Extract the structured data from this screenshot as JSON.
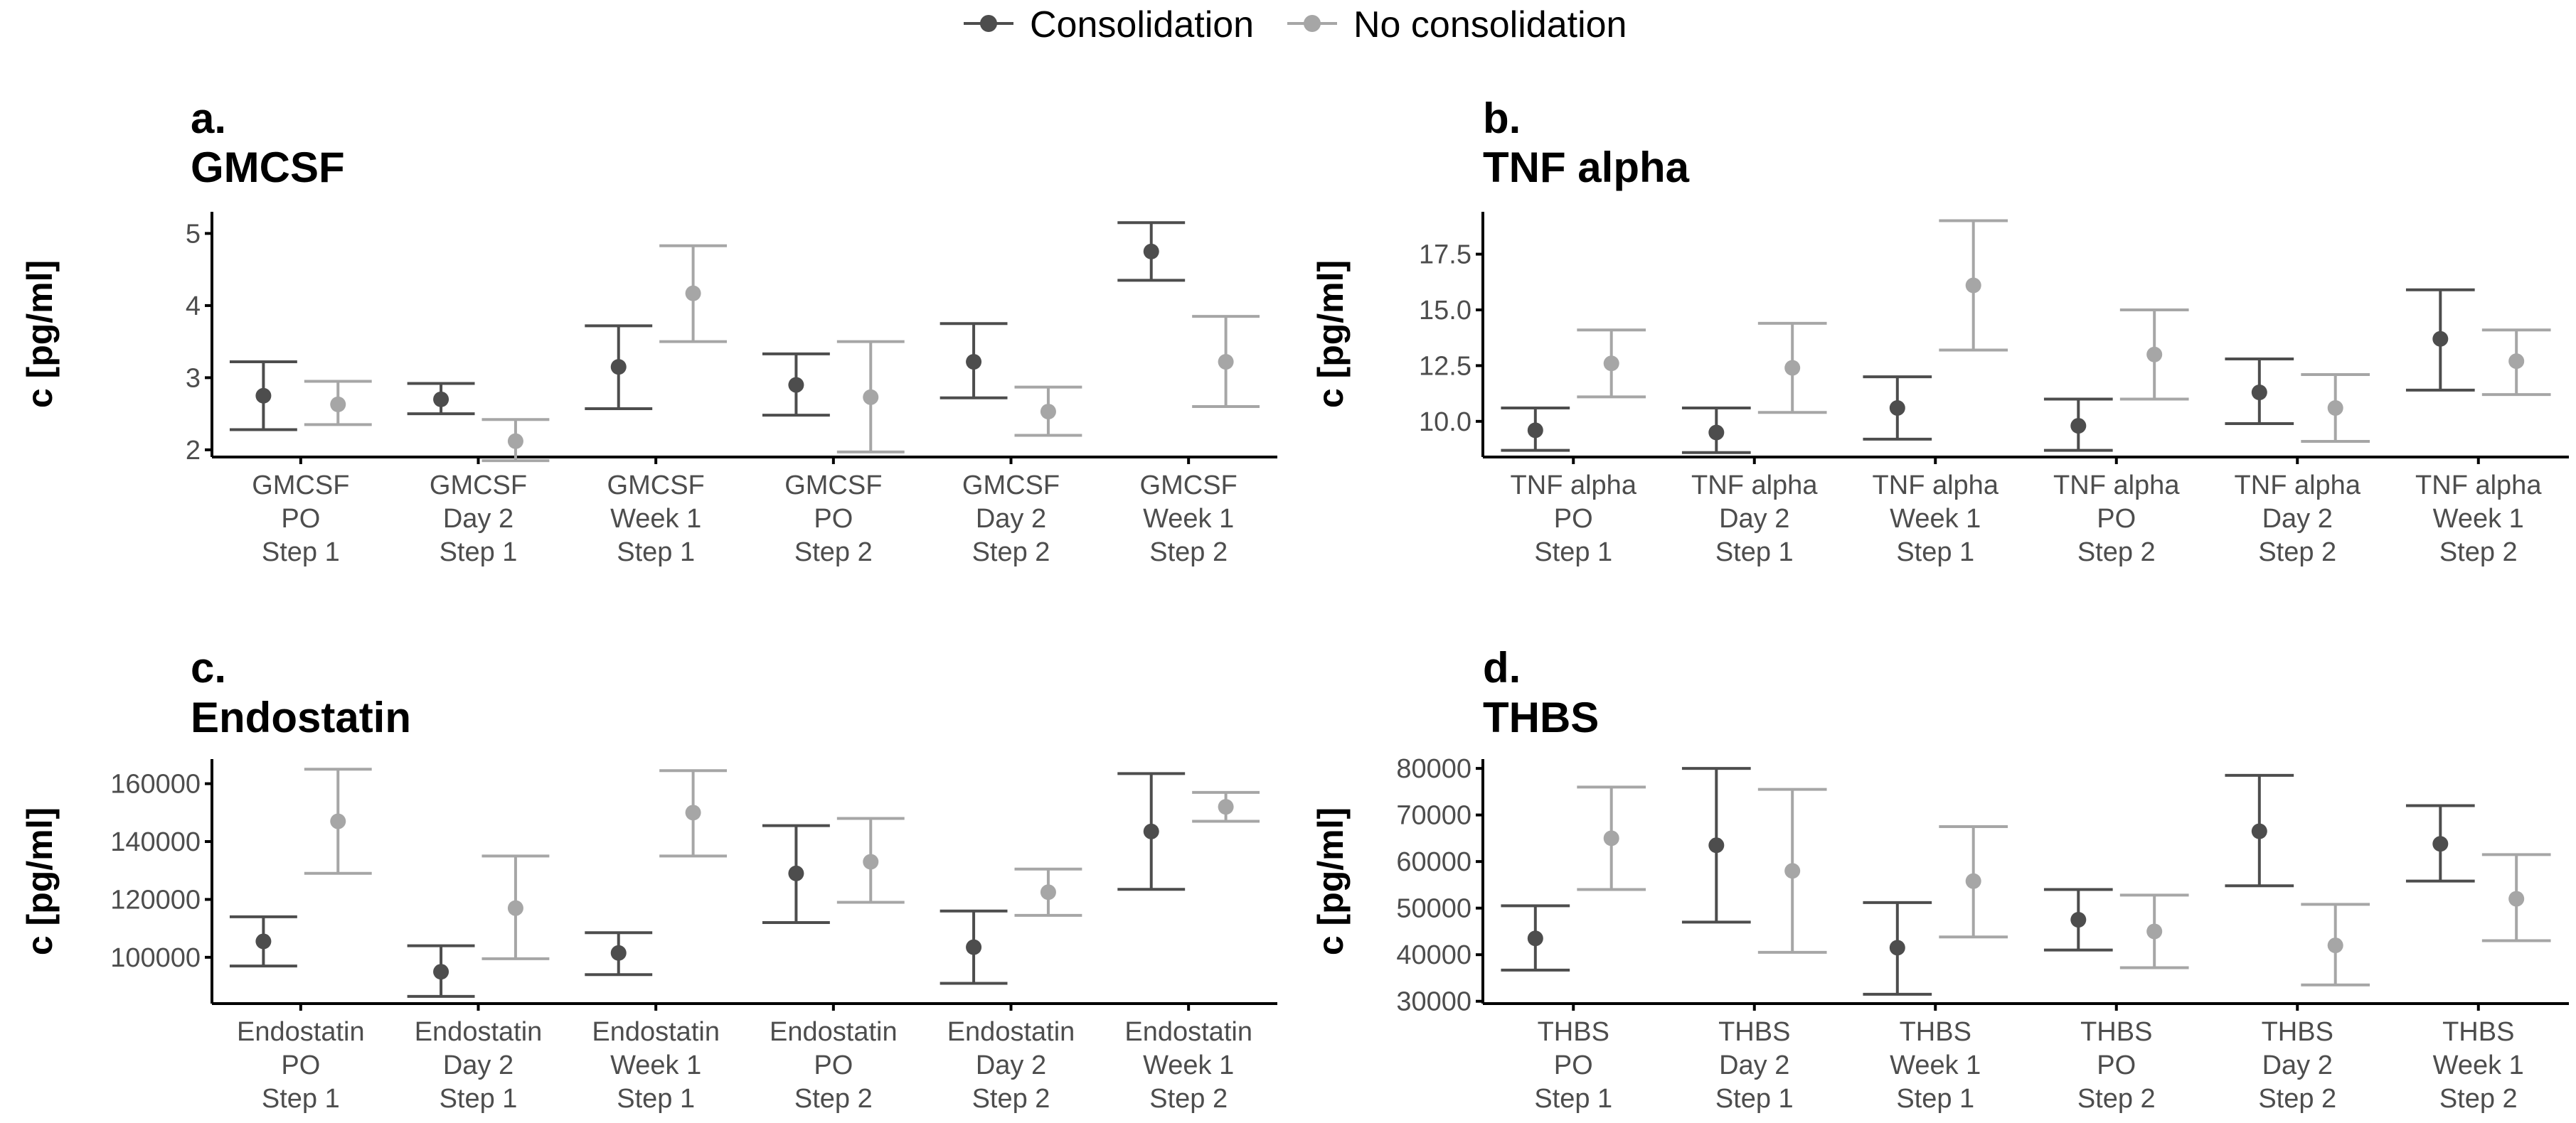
{
  "colors": {
    "consolidation": "#4d4d4d",
    "no_consolidation": "#a6a6a6",
    "axis": "#000000",
    "tick_text": "#4d4d4d"
  },
  "legend": {
    "items": [
      "Consolidation",
      "No consolidation"
    ]
  },
  "chart_data": [
    {
      "type": "scatter",
      "panel": "a.",
      "title": "GMCSF",
      "ylabel": "c [pg/ml]",
      "xlabel": "",
      "ylim": [
        1.9,
        5.3
      ],
      "yticks": [
        2,
        3,
        4,
        5
      ],
      "ytick_labels": [
        "2",
        "3",
        "4",
        "5"
      ],
      "categories": [
        [
          "GMCSF",
          "PO",
          "Step 1"
        ],
        [
          "GMCSF",
          "Day 2",
          "Step 1"
        ],
        [
          "GMCSF",
          "Week 1",
          "Step 1"
        ],
        [
          "GMCSF",
          "PO",
          "Step 2"
        ],
        [
          "GMCSF",
          "Day 2",
          "Step 2"
        ],
        [
          "GMCSF",
          "Week 1",
          "Step 2"
        ]
      ],
      "series": [
        {
          "name": "Consolidation",
          "values": [
            2.75,
            2.7,
            3.15,
            2.9,
            3.22,
            4.75
          ],
          "lower": [
            2.28,
            2.5,
            2.57,
            2.48,
            2.72,
            4.35
          ],
          "upper": [
            3.22,
            2.92,
            3.72,
            3.33,
            3.75,
            5.15
          ]
        },
        {
          "name": "No consolidation",
          "values": [
            2.63,
            2.12,
            4.17,
            2.73,
            2.53,
            3.22
          ],
          "lower": [
            2.35,
            1.85,
            3.5,
            1.97,
            2.2,
            2.6
          ],
          "upper": [
            2.95,
            2.42,
            4.83,
            3.5,
            2.87,
            3.85
          ]
        }
      ]
    },
    {
      "type": "scatter",
      "panel": "b.",
      "title": "TNF alpha",
      "ylabel": "c [pg/ml]",
      "xlabel": "",
      "ylim": [
        8.4,
        19.4
      ],
      "yticks": [
        10,
        12.5,
        15,
        17.5
      ],
      "ytick_labels": [
        "10.0",
        "12.5",
        "15.0",
        "17.5"
      ],
      "categories": [
        [
          "TNF alpha",
          "PO",
          "Step 1"
        ],
        [
          "TNF alpha",
          "Day 2",
          "Step 1"
        ],
        [
          "TNF alpha",
          "Week 1",
          "Step 1"
        ],
        [
          "TNF alpha",
          "PO",
          "Step 2"
        ],
        [
          "TNF alpha",
          "Day 2",
          "Step 2"
        ],
        [
          "TNF alpha",
          "Week 1",
          "Step 2"
        ]
      ],
      "series": [
        {
          "name": "Consolidation",
          "values": [
            9.6,
            9.5,
            10.6,
            9.8,
            11.3,
            13.7
          ],
          "lower": [
            8.7,
            8.6,
            9.2,
            8.7,
            9.9,
            11.4
          ],
          "upper": [
            10.6,
            10.6,
            12.0,
            11.0,
            12.8,
            15.9
          ]
        },
        {
          "name": "No consolidation",
          "values": [
            12.6,
            12.4,
            16.1,
            13.0,
            10.6,
            12.7
          ],
          "lower": [
            11.1,
            10.4,
            13.2,
            11.0,
            9.1,
            11.2
          ],
          "upper": [
            14.1,
            14.4,
            19.0,
            15.0,
            12.1,
            14.1
          ]
        }
      ]
    },
    {
      "type": "scatter",
      "panel": "c.",
      "title": "Endostatin",
      "ylabel": "c [pg/ml]",
      "xlabel": "",
      "ylim": [
        84000,
        168500
      ],
      "yticks": [
        100000,
        120000,
        140000,
        160000
      ],
      "ytick_labels": [
        "100000",
        "120000",
        "140000",
        "160000"
      ],
      "categories": [
        [
          "Endostatin",
          "PO",
          "Step 1"
        ],
        [
          "Endostatin",
          "Day 2",
          "Step 1"
        ],
        [
          "Endostatin",
          "Week 1",
          "Step 1"
        ],
        [
          "Endostatin",
          "PO",
          "Step 2"
        ],
        [
          "Endostatin",
          "Day 2",
          "Step 2"
        ],
        [
          "Endostatin",
          "Week 1",
          "Step 2"
        ]
      ],
      "series": [
        {
          "name": "Consolidation",
          "values": [
            105500,
            95000,
            101500,
            129000,
            103500,
            143500
          ],
          "lower": [
            97000,
            86500,
            94000,
            112000,
            91000,
            123500
          ],
          "upper": [
            114000,
            104000,
            108500,
            145500,
            116000,
            163500
          ]
        },
        {
          "name": "No consolidation",
          "values": [
            147000,
            117000,
            150000,
            133000,
            122500,
            152000
          ],
          "lower": [
            129000,
            99500,
            135000,
            119000,
            114500,
            147000
          ],
          "upper": [
            165000,
            135000,
            164500,
            148000,
            130500,
            157000
          ]
        }
      ]
    },
    {
      "type": "scatter",
      "panel": "d.",
      "title": "THBS",
      "ylabel": "c [pg/ml]",
      "xlabel": "",
      "ylim": [
        29500,
        82000
      ],
      "yticks": [
        30000,
        40000,
        50000,
        60000,
        70000,
        80000
      ],
      "ytick_labels": [
        "30000",
        "40000",
        "50000",
        "60000",
        "70000",
        "80000"
      ],
      "categories": [
        [
          "THBS",
          "PO",
          "Step 1"
        ],
        [
          "THBS",
          "Day 2",
          "Step 1"
        ],
        [
          "THBS",
          "Week 1",
          "Step 1"
        ],
        [
          "THBS",
          "PO",
          "Step 2"
        ],
        [
          "THBS",
          "Day 2",
          "Step 2"
        ],
        [
          "THBS",
          "Week 1",
          "Step 2"
        ]
      ],
      "series": [
        {
          "name": "Consolidation",
          "values": [
            43500,
            63500,
            41500,
            47500,
            66500,
            63800
          ],
          "lower": [
            36700,
            47000,
            31500,
            41000,
            54800,
            55800
          ],
          "upper": [
            50500,
            80000,
            51200,
            54000,
            78500,
            72000
          ]
        },
        {
          "name": "No consolidation",
          "values": [
            65000,
            58000,
            55800,
            45000,
            42000,
            52000
          ],
          "lower": [
            54000,
            40500,
            43800,
            37200,
            33500,
            43000
          ],
          "upper": [
            76000,
            75500,
            67500,
            52800,
            50800,
            61500
          ]
        }
      ]
    }
  ]
}
